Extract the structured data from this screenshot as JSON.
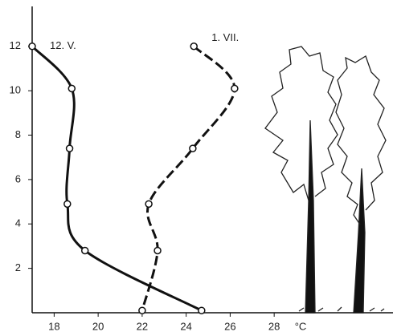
{
  "chart_data": {
    "type": "line",
    "series": [
      {
        "name": "12. V.",
        "color": "#111111",
        "style": "solid",
        "x": [
          17,
          18.8,
          18.7,
          18.6,
          19.4,
          24.7
        ],
        "values": [
          12,
          10.1,
          7.4,
          4.9,
          2.8,
          0.1
        ]
      },
      {
        "name": "1. VII.",
        "color": "#111111",
        "style": "dashed",
        "x": [
          24.35,
          26.2,
          24.3,
          22.3,
          22.7,
          22
        ],
        "values": [
          12,
          10.1,
          7.4,
          4.9,
          2.8,
          0.1
        ]
      }
    ],
    "xlim": [
      17,
      33.4
    ],
    "xticks": [
      18,
      20,
      22,
      24,
      26,
      28
    ],
    "x_unit": "°C",
    "ylim": [
      0,
      13.4
    ],
    "yticks": [
      2,
      4,
      6,
      8,
      10,
      12
    ]
  }
}
